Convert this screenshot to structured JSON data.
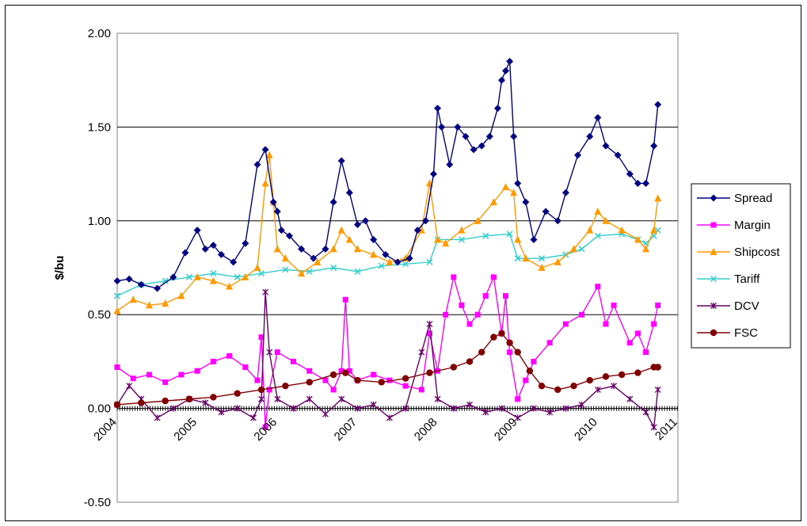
{
  "chart_data": {
    "type": "line",
    "title": "",
    "xlabel": "",
    "ylabel": "$/bu",
    "xlim": [
      2004,
      2011
    ],
    "ylim": [
      -0.5,
      2.0
    ],
    "y_ticks": [
      "2.00",
      "1.50",
      "1.00",
      "0.50",
      "0.00",
      "-0.50"
    ],
    "x_ticks": [
      "2004",
      "2005",
      "2006",
      "2007",
      "2008",
      "2009",
      "2010",
      "2011"
    ],
    "grid": "horizontal major gridlines",
    "legend_position": "right",
    "series": [
      {
        "name": "Spread",
        "color": "#000080",
        "marker": "diamond",
        "x": [
          2004.0,
          2004.15,
          2004.3,
          2004.5,
          2004.7,
          2004.85,
          2005.0,
          2005.1,
          2005.2,
          2005.3,
          2005.45,
          2005.6,
          2005.75,
          2005.85,
          2005.95,
          2006.0,
          2006.05,
          2006.15,
          2006.3,
          2006.45,
          2006.6,
          2006.7,
          2006.8,
          2006.9,
          2007.0,
          2007.1,
          2007.2,
          2007.35,
          2007.5,
          2007.65,
          2007.75,
          2007.85,
          2007.95,
          2008.0,
          2008.05,
          2008.15,
          2008.25,
          2008.35,
          2008.45,
          2008.55,
          2008.65,
          2008.75,
          2008.8,
          2008.85,
          2008.9,
          2008.95,
          2009.0,
          2009.1,
          2009.2,
          2009.35,
          2009.5,
          2009.6,
          2009.75,
          2009.9,
          2010.0,
          2010.1,
          2010.25,
          2010.4,
          2010.5,
          2010.6,
          2010.7,
          2010.75
        ],
        "y": [
          0.68,
          0.69,
          0.66,
          0.64,
          0.7,
          0.83,
          0.95,
          0.85,
          0.87,
          0.82,
          0.78,
          0.88,
          1.3,
          1.38,
          1.1,
          1.05,
          0.95,
          0.92,
          0.85,
          0.8,
          0.85,
          1.1,
          1.32,
          1.15,
          0.98,
          1.0,
          0.9,
          0.82,
          0.78,
          0.8,
          0.95,
          1.0,
          1.25,
          1.6,
          1.5,
          1.3,
          1.5,
          1.45,
          1.38,
          1.4,
          1.45,
          1.6,
          1.75,
          1.8,
          1.85,
          1.45,
          1.2,
          1.1,
          0.9,
          1.05,
          1.0,
          1.15,
          1.35,
          1.45,
          1.55,
          1.4,
          1.35,
          1.25,
          1.2,
          1.2,
          1.4,
          1.62
        ]
      },
      {
        "name": "Margin",
        "color": "#FF00FF",
        "marker": "square",
        "x": [
          2004.0,
          2004.2,
          2004.4,
          2004.6,
          2004.8,
          2005.0,
          2005.2,
          2005.4,
          2005.6,
          2005.75,
          2005.8,
          2005.85,
          2005.9,
          2006.0,
          2006.2,
          2006.4,
          2006.6,
          2006.7,
          2006.8,
          2006.85,
          2006.9,
          2007.0,
          2007.2,
          2007.4,
          2007.6,
          2007.8,
          2007.9,
          2008.0,
          2008.1,
          2008.2,
          2008.3,
          2008.4,
          2008.5,
          2008.6,
          2008.7,
          2008.8,
          2008.85,
          2008.9,
          2009.0,
          2009.1,
          2009.2,
          2009.4,
          2009.6,
          2009.8,
          2010.0,
          2010.1,
          2010.2,
          2010.4,
          2010.5,
          2010.6,
          2010.7,
          2010.75
        ],
        "y": [
          0.22,
          0.16,
          0.18,
          0.14,
          0.18,
          0.2,
          0.25,
          0.28,
          0.22,
          0.15,
          0.38,
          -0.1,
          0.1,
          0.3,
          0.25,
          0.2,
          0.15,
          0.1,
          0.2,
          0.58,
          0.2,
          0.15,
          0.18,
          0.15,
          0.12,
          0.1,
          0.4,
          0.2,
          0.5,
          0.7,
          0.55,
          0.45,
          0.5,
          0.6,
          0.7,
          0.4,
          0.6,
          0.3,
          0.05,
          0.15,
          0.25,
          0.35,
          0.45,
          0.5,
          0.65,
          0.45,
          0.55,
          0.35,
          0.4,
          0.3,
          0.45,
          0.55
        ]
      },
      {
        "name": "Shipcost",
        "color": "#FF9900",
        "marker": "triangle",
        "x": [
          2004.0,
          2004.2,
          2004.4,
          2004.6,
          2004.8,
          2005.0,
          2005.2,
          2005.4,
          2005.6,
          2005.75,
          2005.85,
          2005.9,
          2005.95,
          2006.0,
          2006.1,
          2006.3,
          2006.5,
          2006.7,
          2006.8,
          2006.9,
          2007.0,
          2007.2,
          2007.4,
          2007.6,
          2007.8,
          2007.9,
          2008.0,
          2008.1,
          2008.3,
          2008.5,
          2008.7,
          2008.85,
          2008.95,
          2009.0,
          2009.1,
          2009.3,
          2009.5,
          2009.7,
          2009.9,
          2010.0,
          2010.1,
          2010.3,
          2010.5,
          2010.6,
          2010.7,
          2010.75
        ],
        "y": [
          0.52,
          0.58,
          0.55,
          0.56,
          0.6,
          0.7,
          0.68,
          0.65,
          0.7,
          0.75,
          1.2,
          1.35,
          1.1,
          0.85,
          0.8,
          0.72,
          0.78,
          0.85,
          0.95,
          0.9,
          0.85,
          0.82,
          0.78,
          0.8,
          0.95,
          1.2,
          0.9,
          0.88,
          0.95,
          1.0,
          1.1,
          1.18,
          1.15,
          0.9,
          0.8,
          0.75,
          0.78,
          0.85,
          0.95,
          1.05,
          1.0,
          0.95,
          0.9,
          0.85,
          0.95,
          1.12
        ]
      },
      {
        "name": "Tariff",
        "color": "#33CCCC",
        "marker": "x",
        "x": [
          2004.0,
          2004.3,
          2004.6,
          2004.9,
          2005.2,
          2005.5,
          2005.8,
          2006.1,
          2006.4,
          2006.7,
          2007.0,
          2007.3,
          2007.6,
          2007.9,
          2008.0,
          2008.3,
          2008.6,
          2008.9,
          2009.0,
          2009.3,
          2009.6,
          2009.8,
          2010.0,
          2010.3,
          2010.5,
          2010.6,
          2010.7,
          2010.75
        ],
        "y": [
          0.6,
          0.66,
          0.68,
          0.7,
          0.72,
          0.7,
          0.72,
          0.74,
          0.73,
          0.75,
          0.73,
          0.76,
          0.77,
          0.78,
          0.9,
          0.9,
          0.92,
          0.93,
          0.8,
          0.8,
          0.82,
          0.85,
          0.92,
          0.93,
          0.9,
          0.88,
          0.92,
          0.95
        ]
      },
      {
        "name": "DCV",
        "color": "#660066",
        "marker": "star",
        "x": [
          2004.0,
          2004.15,
          2004.3,
          2004.5,
          2004.7,
          2004.9,
          2005.1,
          2005.3,
          2005.5,
          2005.7,
          2005.8,
          2005.85,
          2005.9,
          2006.0,
          2006.2,
          2006.4,
          2006.6,
          2006.8,
          2007.0,
          2007.2,
          2007.4,
          2007.6,
          2007.8,
          2007.9,
          2008.0,
          2008.2,
          2008.4,
          2008.6,
          2008.8,
          2009.0,
          2009.2,
          2009.4,
          2009.6,
          2009.8,
          2010.0,
          2010.2,
          2010.4,
          2010.6,
          2010.7,
          2010.75
        ],
        "y": [
          0.02,
          0.12,
          0.05,
          -0.05,
          0.0,
          0.05,
          0.03,
          -0.02,
          0.0,
          -0.05,
          0.05,
          0.62,
          0.3,
          0.05,
          0.0,
          0.05,
          -0.03,
          0.05,
          0.0,
          0.02,
          -0.05,
          0.0,
          0.3,
          0.45,
          0.05,
          0.0,
          0.02,
          -0.02,
          0.0,
          -0.05,
          0.0,
          -0.02,
          0.0,
          0.02,
          0.1,
          0.12,
          0.05,
          -0.02,
          -0.1,
          0.1
        ]
      },
      {
        "name": "FSC",
        "color": "#800000",
        "marker": "circle",
        "x": [
          2004.0,
          2004.3,
          2004.6,
          2004.9,
          2005.2,
          2005.5,
          2005.8,
          2006.1,
          2006.4,
          2006.7,
          2006.85,
          2007.0,
          2007.3,
          2007.6,
          2007.9,
          2008.2,
          2008.4,
          2008.55,
          2008.7,
          2008.8,
          2008.9,
          2009.0,
          2009.15,
          2009.3,
          2009.5,
          2009.7,
          2009.9,
          2010.1,
          2010.3,
          2010.5,
          2010.7,
          2010.75
        ],
        "y": [
          0.02,
          0.03,
          0.04,
          0.05,
          0.06,
          0.08,
          0.1,
          0.12,
          0.14,
          0.18,
          0.19,
          0.15,
          0.14,
          0.16,
          0.19,
          0.22,
          0.25,
          0.3,
          0.38,
          0.4,
          0.35,
          0.3,
          0.2,
          0.12,
          0.1,
          0.12,
          0.15,
          0.17,
          0.18,
          0.19,
          0.22,
          0.22
        ]
      }
    ]
  }
}
